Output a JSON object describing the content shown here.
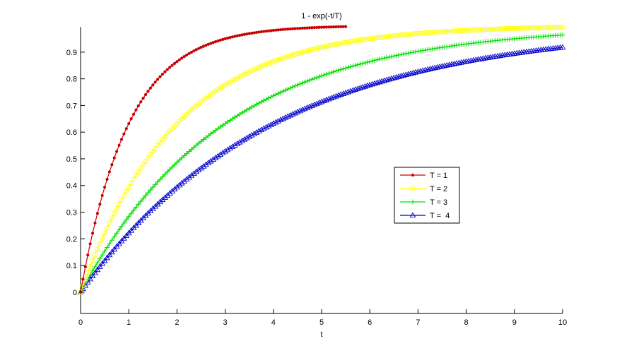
{
  "chart_data": {
    "type": "line",
    "title": "1 - exp(-t/T)",
    "xlabel": "t",
    "ylabel": "",
    "xlim": [
      0,
      10
    ],
    "ylim": [
      -0.08,
      0.995
    ],
    "x_ticks": [
      0,
      1,
      2,
      3,
      4,
      5,
      6,
      7,
      8,
      9,
      10
    ],
    "y_ticks": [
      0,
      0.1,
      0.2,
      0.3,
      0.4,
      0.5,
      0.6,
      0.7,
      0.8,
      0.9
    ],
    "x_tick_labels": [
      "0",
      "1",
      "2",
      "3",
      "4",
      "5",
      "6",
      "7",
      "8",
      "9",
      "10"
    ],
    "y_tick_labels": [
      "0",
      "0.1",
      "0.2",
      "0.3",
      "0.4",
      "0.5",
      "0.6",
      "0.7",
      "0.8",
      "0.9"
    ],
    "grid": false,
    "legend_position": "center-right",
    "series": [
      {
        "name": "T = 1",
        "T": 1,
        "color": "#cc0000",
        "marker": "dot",
        "x_start": 0,
        "x_end": 5.5,
        "x_step": 0.05,
        "points": [
          [
            0,
            0
          ],
          [
            0.5,
            0.393
          ],
          [
            1,
            0.632
          ],
          [
            1.5,
            0.777
          ],
          [
            2,
            0.865
          ],
          [
            2.5,
            0.918
          ],
          [
            3,
            0.95
          ],
          [
            3.5,
            0.97
          ],
          [
            4,
            0.982
          ],
          [
            4.5,
            0.989
          ],
          [
            5,
            0.993
          ],
          [
            5.5,
            0.996
          ]
        ]
      },
      {
        "name": "T = 2",
        "T": 2,
        "color": "#ffff00",
        "marker": "circle",
        "x_start": 0,
        "x_end": 10,
        "x_step": 0.05,
        "points": [
          [
            0,
            0
          ],
          [
            1,
            0.393
          ],
          [
            2,
            0.632
          ],
          [
            3,
            0.777
          ],
          [
            4,
            0.865
          ],
          [
            5,
            0.918
          ],
          [
            6,
            0.95
          ],
          [
            7,
            0.97
          ],
          [
            8,
            0.982
          ],
          [
            9,
            0.989
          ],
          [
            10,
            0.993
          ]
        ]
      },
      {
        "name": "T = 3",
        "T": 3,
        "color": "#00dd00",
        "marker": "plus",
        "x_start": 0,
        "x_end": 10,
        "x_step": 0.05,
        "points": [
          [
            0,
            0
          ],
          [
            1,
            0.283
          ],
          [
            2,
            0.487
          ],
          [
            3,
            0.632
          ],
          [
            4,
            0.736
          ],
          [
            5,
            0.811
          ],
          [
            6,
            0.865
          ],
          [
            7,
            0.903
          ],
          [
            8,
            0.931
          ],
          [
            9,
            0.95
          ],
          [
            10,
            0.964
          ]
        ]
      },
      {
        "name": "T =  4",
        "T": 4,
        "color": "#0000cc",
        "marker": "triangle",
        "x_start": 0,
        "x_end": 10,
        "x_step": 0.05,
        "points": [
          [
            0,
            0
          ],
          [
            1,
            0.221
          ],
          [
            2,
            0.393
          ],
          [
            3,
            0.528
          ],
          [
            4,
            0.632
          ],
          [
            5,
            0.713
          ],
          [
            6,
            0.777
          ],
          [
            7,
            0.826
          ],
          [
            8,
            0.865
          ],
          [
            9,
            0.895
          ],
          [
            10,
            0.918
          ]
        ]
      }
    ]
  }
}
